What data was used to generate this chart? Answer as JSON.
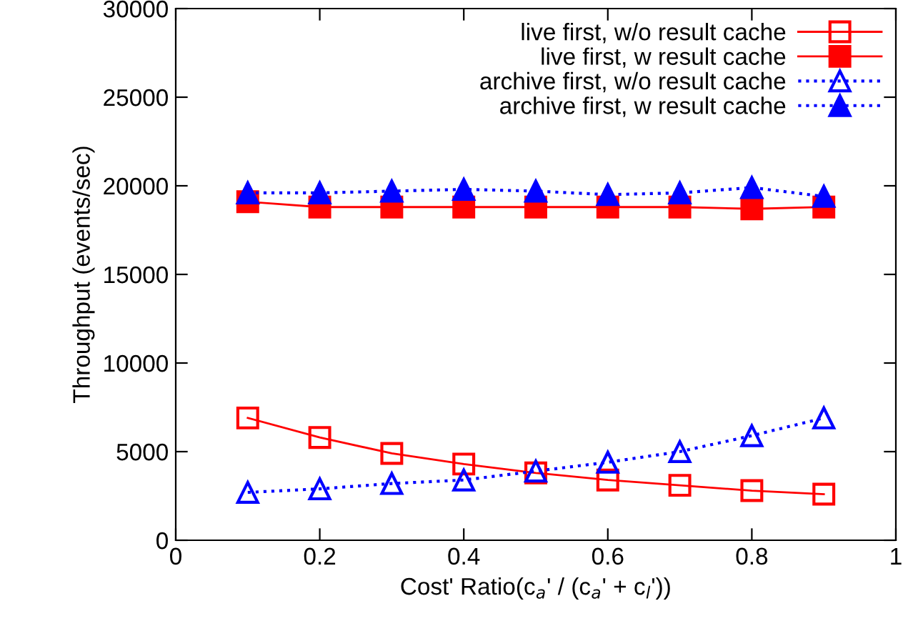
{
  "chart_data": {
    "type": "line",
    "xlabel": "Cost' Ratio(c$_{a}$' / (c$_{a}$' + c$_{l}$'))",
    "ylabel": "Throughput (events/sec)",
    "x": [
      0.1,
      0.2,
      0.3,
      0.4,
      0.5,
      0.6,
      0.7,
      0.8,
      0.9
    ],
    "series": [
      {
        "name": "live first, w/o result cache",
        "color": "#ff0000",
        "marker": "square",
        "line_style": "solid",
        "values": [
          6900,
          5800,
          4900,
          4300,
          3800,
          3400,
          3100,
          2800,
          2600
        ]
      },
      {
        "name": "live first, w result cache",
        "color": "#ff0000",
        "marker": "square",
        "line_style": "solid",
        "values": [
          19100,
          18800,
          18800,
          18800,
          18800,
          18800,
          18800,
          18700,
          18800
        ]
      },
      {
        "name": "archive first, w/o result cache",
        "color": "#0000ff",
        "marker": "triangle",
        "line_style": "dotted",
        "values": [
          2700,
          2900,
          3200,
          3400,
          3900,
          4400,
          5000,
          5900,
          6900
        ]
      },
      {
        "name": "archive first, w result cache",
        "color": "#0000ff",
        "marker": "triangle",
        "line_style": "dotted",
        "values": [
          19600,
          19600,
          19700,
          19800,
          19700,
          19500,
          19600,
          19900,
          19400
        ]
      }
    ],
    "xlim": [
      0,
      1
    ],
    "xticks": [
      0,
      0.2,
      0.4,
      0.6,
      0.8,
      1
    ],
    "ylim": [
      0,
      30000
    ],
    "yticks": [
      0,
      5000,
      10000,
      15000,
      20000,
      25000,
      30000
    ],
    "grid": false,
    "legend": "top right"
  }
}
